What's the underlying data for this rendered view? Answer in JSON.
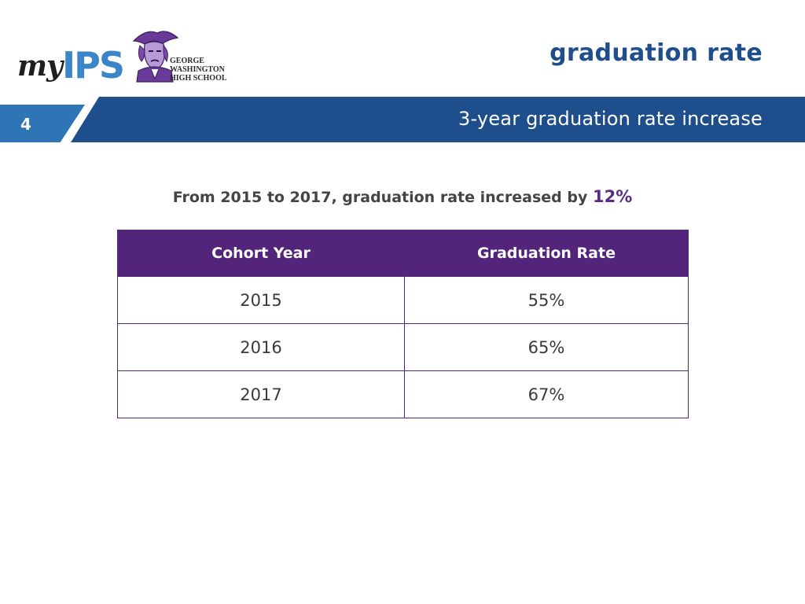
{
  "logo": {
    "my": "my",
    "ips": "IPS"
  },
  "school": {
    "name_lines": [
      "GEORGE",
      "WASHINGTON",
      "HIGH SCHOOL"
    ]
  },
  "header": {
    "title": "graduation rate"
  },
  "banner": {
    "slide_number": "4",
    "subtitle": "3-year graduation rate increase"
  },
  "summary": {
    "text": "From 2015 to 2017, graduation rate increased by",
    "highlight": "12%"
  },
  "table": {
    "headers": [
      "Cohort Year",
      "Graduation Rate"
    ],
    "rows": [
      [
        "2015",
        "55%"
      ],
      [
        "2016",
        "65%"
      ],
      [
        "2017",
        "67%"
      ]
    ]
  },
  "colors": {
    "banner_blue": "#1f4e8c",
    "tab_blue": "#2e75b6",
    "header_purple": "#52247a",
    "accent_purple": "#5b2a86"
  },
  "icons": {
    "mascot": "patriot-mascot-icon"
  }
}
